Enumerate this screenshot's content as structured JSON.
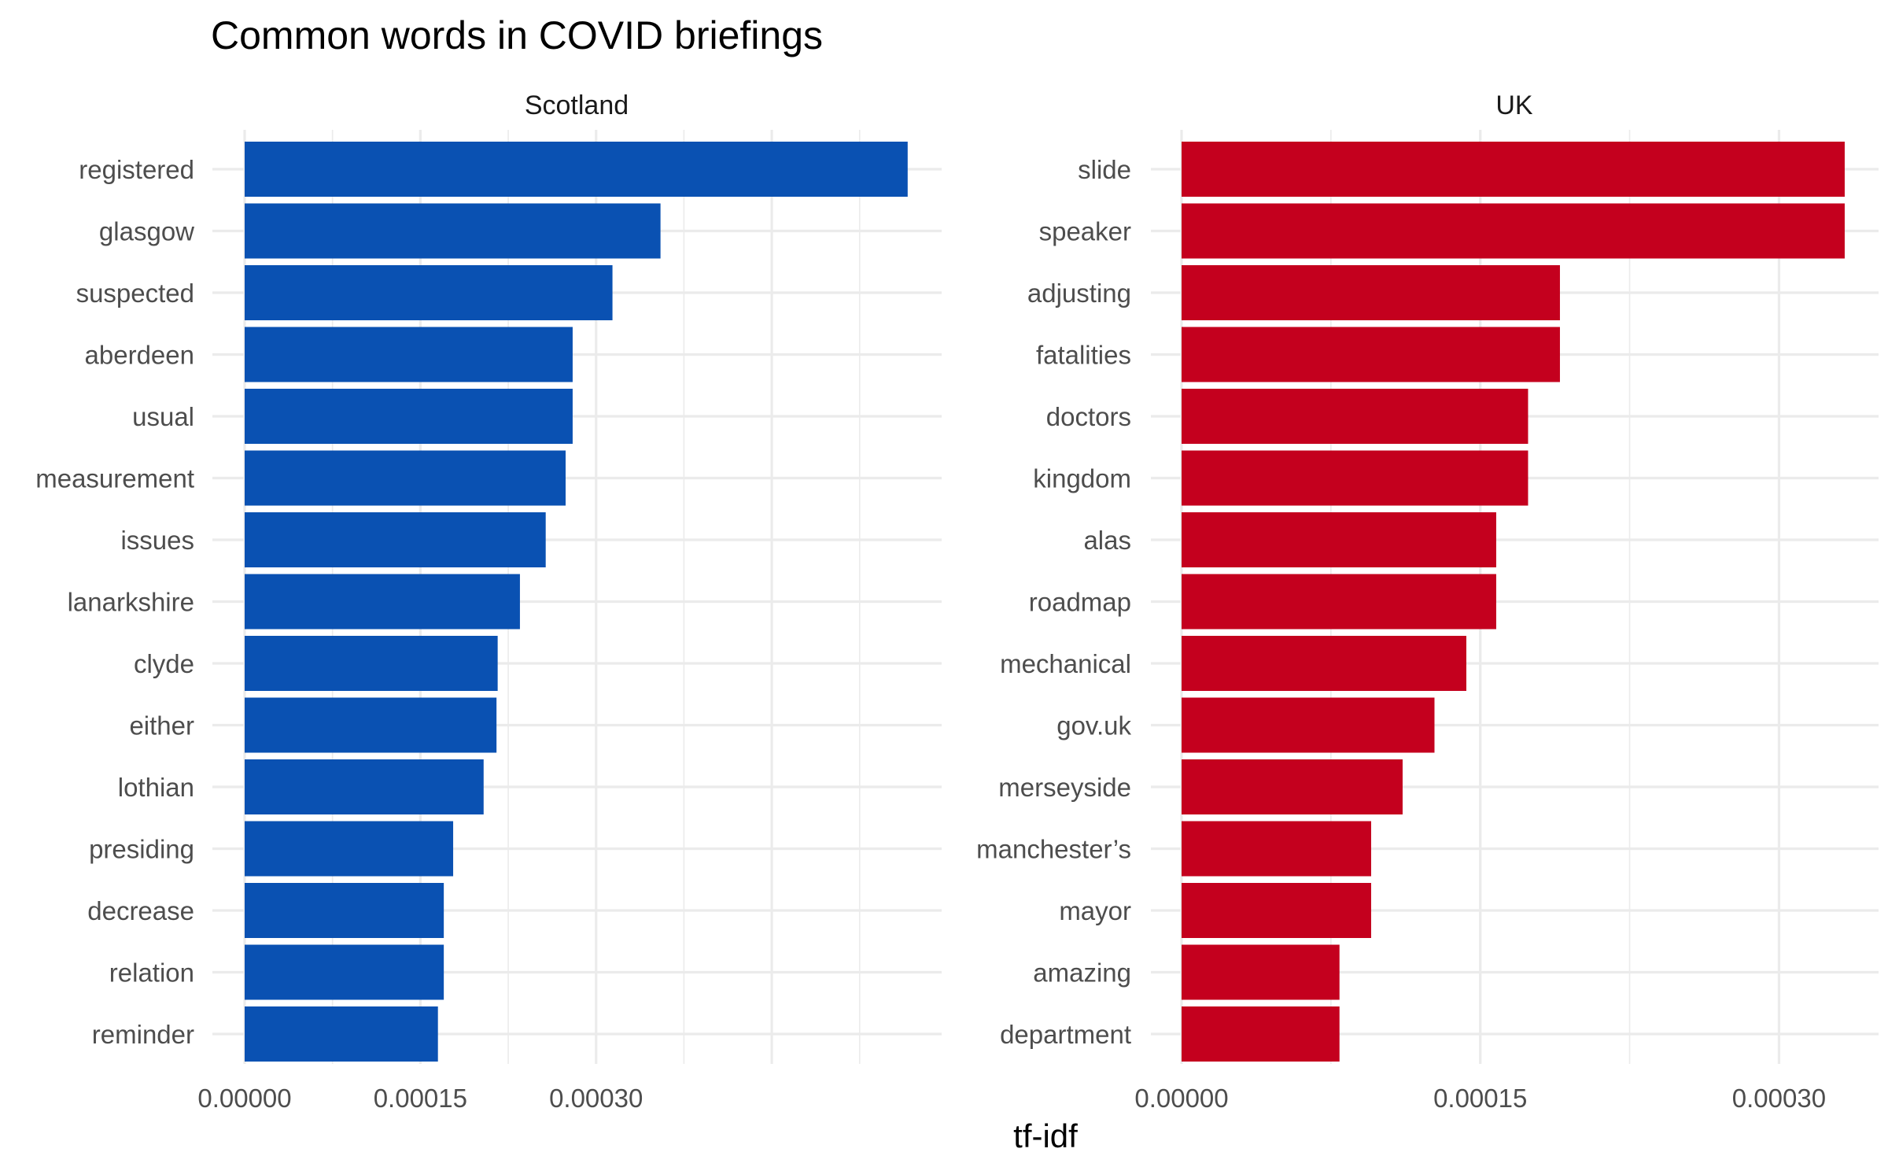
{
  "title": "Common words in COVID briefings",
  "chart_data": {
    "type": "bar",
    "orientation": "horizontal",
    "xlabel": "tf-idf",
    "ylabel": "",
    "xticks": [
      "0.00000",
      "0.00015",
      "0.00030"
    ],
    "grid": true,
    "panels": [
      {
        "name": "Scotland",
        "color": "#0a51b2",
        "xlim": [
          0,
          0.000595
        ],
        "categories": [
          "registered",
          "glasgow",
          "suspected",
          "aberdeen",
          "usual",
          "measurement",
          "issues",
          "lanarkshire",
          "clyde",
          "either",
          "lothian",
          "presiding",
          "decrease",
          "relation",
          "reminder"
        ],
        "values": [
          0.000566,
          0.000355,
          0.000314,
          0.00028,
          0.00028,
          0.000274,
          0.000257,
          0.000235,
          0.000216,
          0.000215,
          0.000204,
          0.000178,
          0.00017,
          0.00017,
          0.000165
        ]
      },
      {
        "name": "UK",
        "color": "#c4001e",
        "xlim": [
          0,
          0.00035
        ],
        "categories": [
          "slide",
          "speaker",
          "adjusting",
          "fatalities",
          "doctors",
          "kingdom",
          "alas",
          "roadmap",
          "mechanical",
          "gov.uk",
          "merseyside",
          "manchester’s",
          "mayor",
          "amazing",
          "department"
        ],
        "values": [
          0.000333,
          0.000333,
          0.00019,
          0.00019,
          0.000174,
          0.000174,
          0.000158,
          0.000158,
          0.000143,
          0.000127,
          0.000111,
          9.52e-05,
          9.52e-05,
          7.93e-05,
          7.93e-05
        ]
      }
    ]
  }
}
